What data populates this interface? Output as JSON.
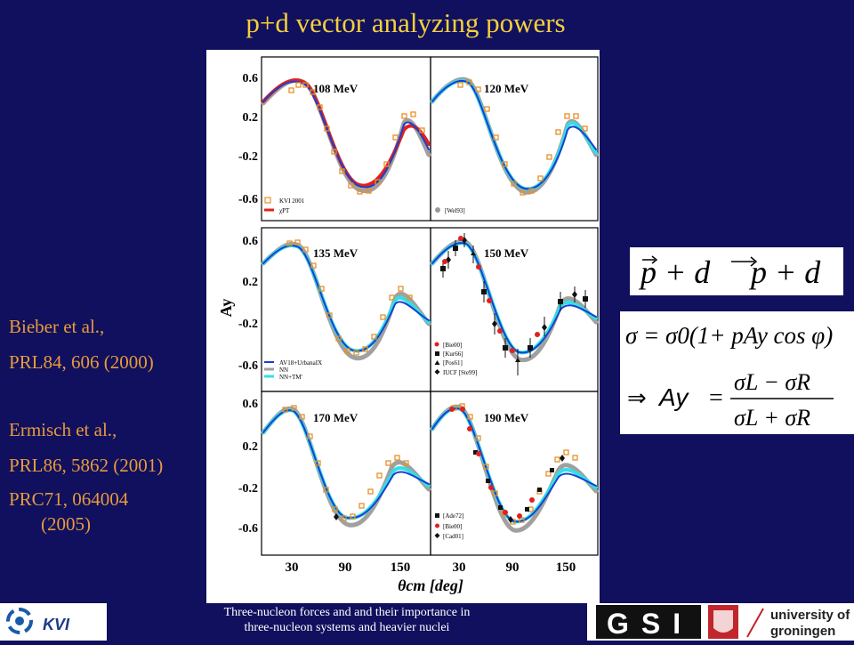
{
  "title": "p+d vector analyzing powers",
  "references": [
    "Bieber et al.,",
    "PRL84, 606 (2000)",
    "Ermisch et al.,",
    "PRL86, 5862 (2001)",
    "PRC71, 064004",
    "(2005)"
  ],
  "figure": {
    "y_axis_label": "Ay",
    "x_axis_label": "θcm [deg]",
    "y_ticks": [
      "0.6",
      "0.2",
      "-0.2",
      "-0.6"
    ],
    "x_ticks": [
      "30",
      "90",
      "150"
    ],
    "panels": [
      {
        "energy": "108 MeV",
        "legend": [
          "KVI 2001",
          "χPT"
        ]
      },
      {
        "energy": "120 MeV",
        "legend": [
          "[Wel93]"
        ]
      },
      {
        "energy": "135 MeV",
        "legend": [
          "AV18+UrbanaIX",
          "NN",
          "NN+TM'"
        ]
      },
      {
        "energy": "150 MeV",
        "legend": [
          "[Bie00]",
          "[Kur66]",
          "[Pos61]",
          "IUCF [Ste99]"
        ]
      },
      {
        "energy": "170 MeV",
        "legend": []
      },
      {
        "energy": "190 MeV",
        "legend": [
          "[Ade72]",
          "[Bie00]",
          "[Cad01]"
        ]
      }
    ],
    "colors": {
      "kvi_points": "#e8902a",
      "chipt": "#e02020",
      "av18": "#1a3fd0",
      "nn": "#a0a0a0",
      "nntm": "#30e0e8"
    }
  },
  "reaction": {
    "lhs": "p + d",
    "rhs": "p + d"
  },
  "equations": {
    "sigma": "σ = σ0(1+ pAy cos φ)",
    "ay_symbol": "Ay",
    "numerator": "σL − σR",
    "denominator": "σL + σR",
    "glyph": "⇒"
  },
  "footer": {
    "line1": "Three-nucleon forces and and their importance in",
    "line2": "three-nucleon systems and heavier nuclei",
    "kvi": "KVI",
    "gsi": "GSI",
    "university": "university of",
    "groningen": "groningen"
  }
}
